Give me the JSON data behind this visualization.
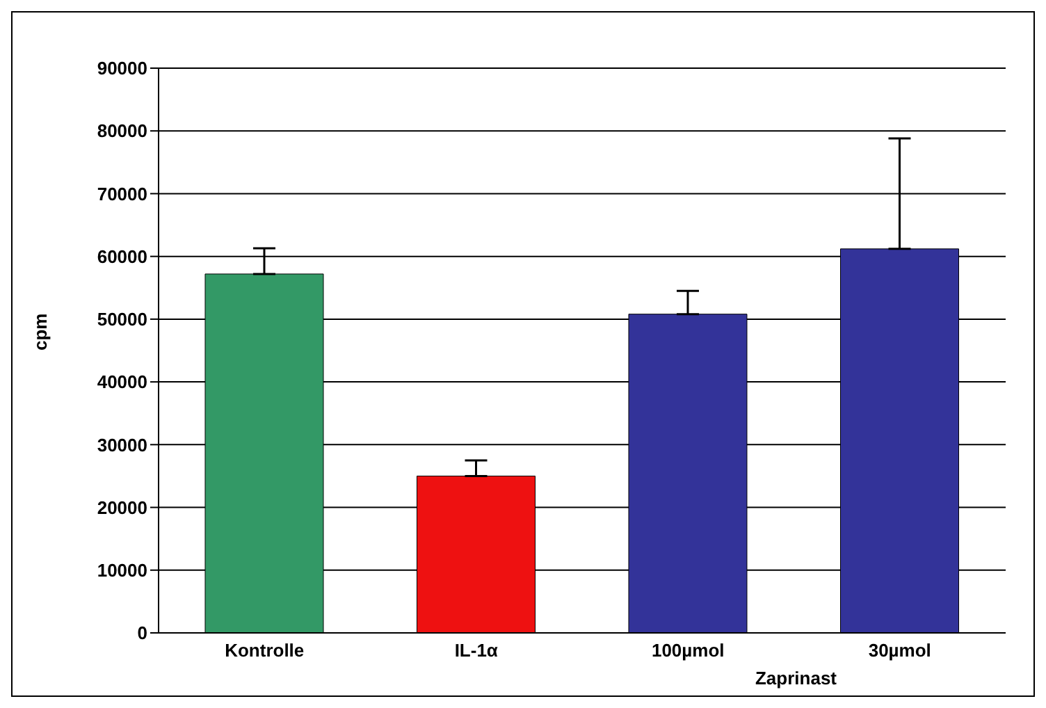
{
  "chart_data": {
    "type": "bar",
    "ylabel": "cpm",
    "categories": [
      "Kontrolle",
      "IL-1α",
      "100µmol",
      "30µmol"
    ],
    "values": [
      57200,
      25000,
      50800,
      61200
    ],
    "colors": [
      "#339966",
      "#ee1111",
      "#333399",
      "#333399"
    ],
    "errors": [
      [
        57200,
        61300
      ],
      [
        25000,
        27500
      ],
      [
        50800,
        54500
      ],
      [
        61200,
        78800
      ]
    ],
    "ylim": [
      0,
      90000
    ],
    "yticks": [
      0,
      10000,
      20000,
      30000,
      40000,
      50000,
      60000,
      70000,
      80000,
      90000
    ],
    "grid": "y",
    "annotations": [
      "Zaprinast"
    ]
  }
}
